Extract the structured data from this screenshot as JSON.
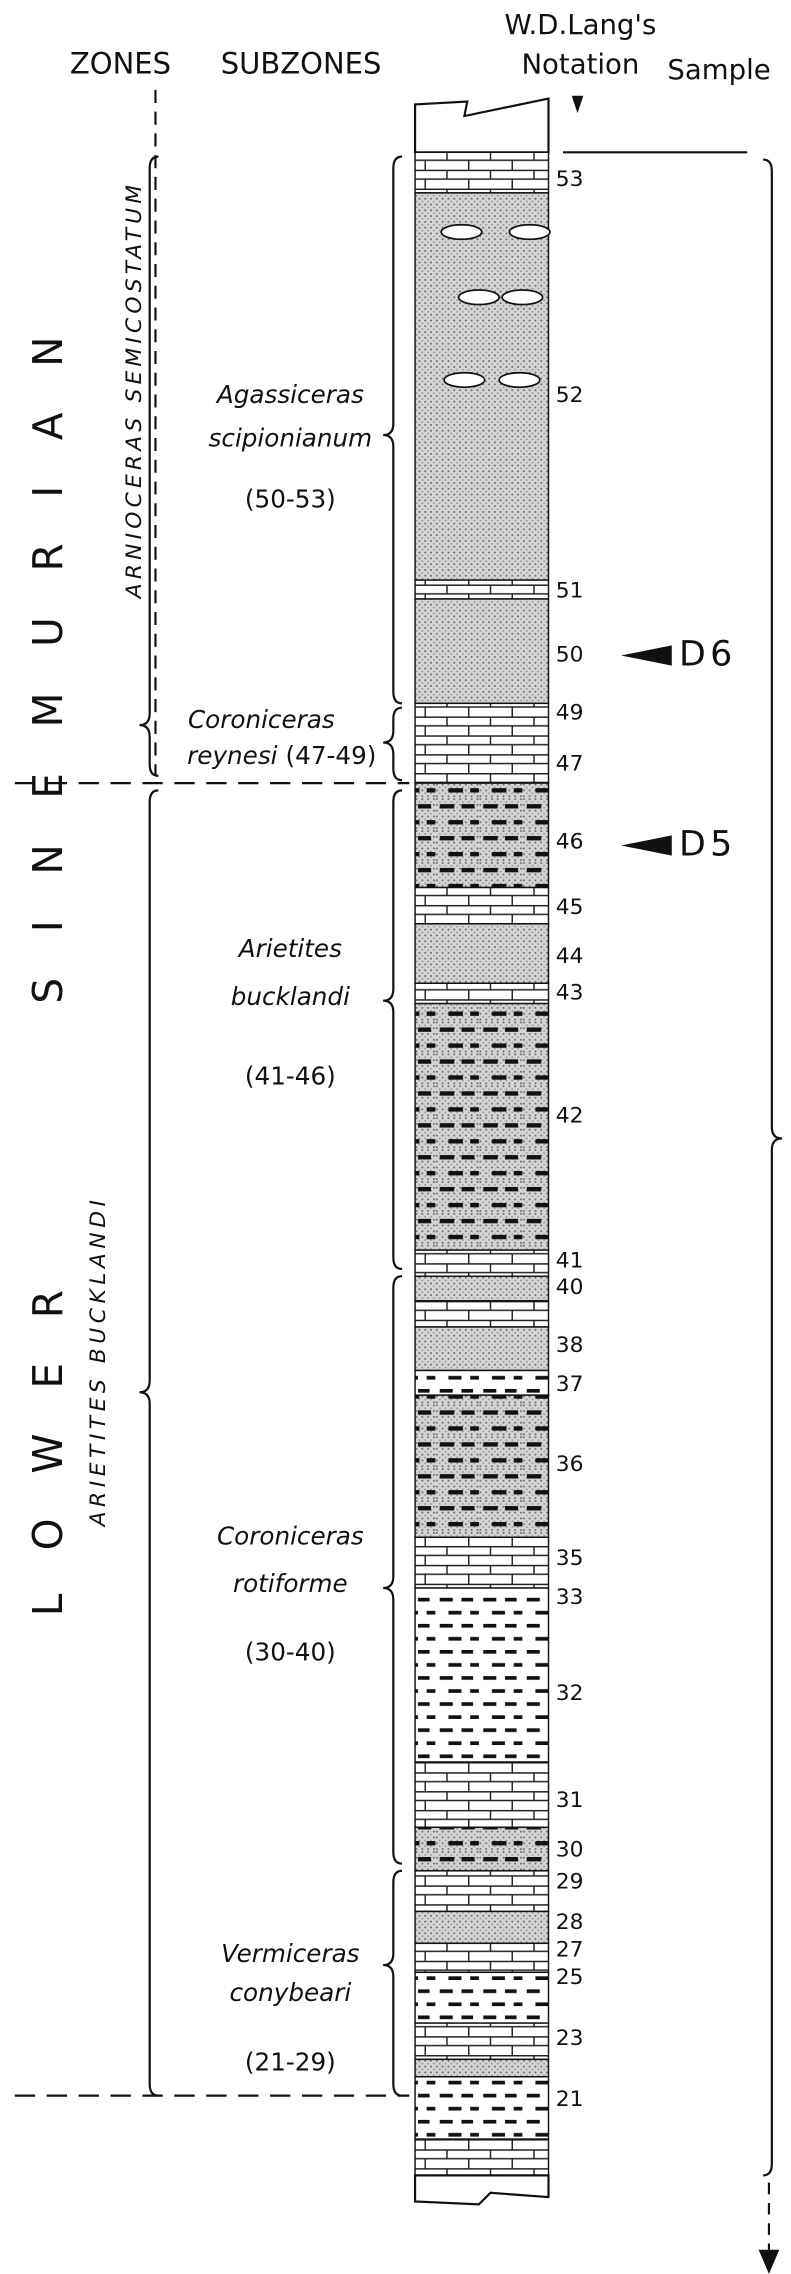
{
  "headers": {
    "zones": "ZONES",
    "subzones": "SUBZONES",
    "notation_line1": "W.D.Lang's",
    "notation_line2": "Notation",
    "sample": "Sample"
  },
  "stage": {
    "lower": "LOWER",
    "upper_word": "SINEMURIAN"
  },
  "zones": [
    "ARNIOCERAS SEMICOSTATUM",
    "ARIETITES BUCKLANDI"
  ],
  "subzones": [
    {
      "name": "Agassiceras",
      "species": "scipionianum",
      "range": "(50-53)"
    },
    {
      "name": "Coroniceras",
      "species": "reynesi",
      "range": "(47-49)"
    },
    {
      "name": "Arietites",
      "species": "bucklandi",
      "range": "(41-46)"
    },
    {
      "name": "Coroniceras",
      "species": "rotiforme",
      "range": "(30-40)"
    },
    {
      "name": "Vermiceras",
      "species": "conybeari",
      "range": "(21-29)"
    }
  ],
  "beds": [
    "53",
    "52",
    "51",
    "50",
    "49",
    "47",
    "46",
    "45",
    "44",
    "43",
    "42",
    "41",
    "40",
    "38",
    "37",
    "36",
    "35",
    "33",
    "32",
    "31",
    "30",
    "29",
    "28",
    "27",
    "25",
    "23",
    "21"
  ],
  "samples": [
    "D6",
    "D5"
  ]
}
